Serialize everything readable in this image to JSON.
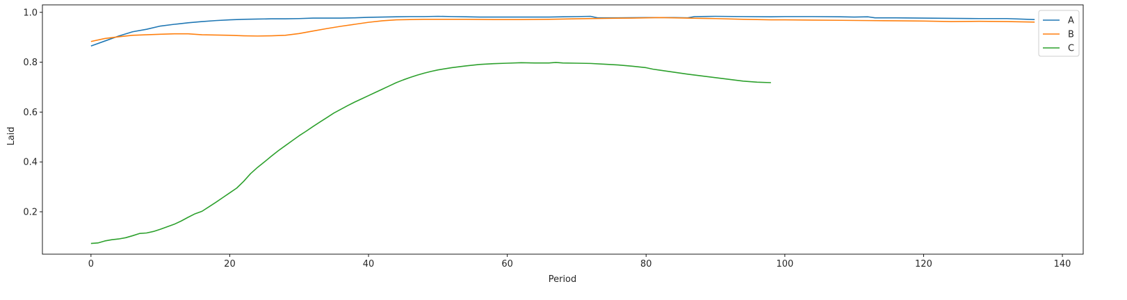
{
  "chart_data": {
    "type": "line",
    "title": "",
    "xlabel": "Period",
    "ylabel": "Laid",
    "xlim": [
      -7,
      143
    ],
    "ylim": [
      0.03,
      1.03
    ],
    "xticks": [
      0,
      20,
      40,
      60,
      80,
      100,
      120,
      140
    ],
    "yticks": [
      0.2,
      0.4,
      0.6,
      0.8,
      1.0
    ],
    "xtick_labels": [
      "0",
      "20",
      "40",
      "60",
      "80",
      "100",
      "120",
      "140"
    ],
    "ytick_labels": [
      "0.2",
      "0.4",
      "0.6",
      "0.8",
      "1.0"
    ],
    "grid": false,
    "legend_position": "top-right",
    "series": [
      {
        "name": "A",
        "color": "#1f77b4",
        "points": [
          [
            0,
            0.865
          ],
          [
            2,
            0.885
          ],
          [
            4,
            0.905
          ],
          [
            6,
            0.922
          ],
          [
            8,
            0.932
          ],
          [
            10,
            0.945
          ],
          [
            12,
            0.952
          ],
          [
            14,
            0.958
          ],
          [
            16,
            0.963
          ],
          [
            18,
            0.967
          ],
          [
            20,
            0.97
          ],
          [
            22,
            0.972
          ],
          [
            24,
            0.973
          ],
          [
            26,
            0.974
          ],
          [
            28,
            0.974
          ],
          [
            30,
            0.975
          ],
          [
            32,
            0.977
          ],
          [
            34,
            0.977
          ],
          [
            36,
            0.977
          ],
          [
            38,
            0.978
          ],
          [
            40,
            0.98
          ],
          [
            42,
            0.981
          ],
          [
            44,
            0.982
          ],
          [
            46,
            0.983
          ],
          [
            48,
            0.983
          ],
          [
            50,
            0.984
          ],
          [
            52,
            0.983
          ],
          [
            54,
            0.982
          ],
          [
            56,
            0.981
          ],
          [
            58,
            0.981
          ],
          [
            60,
            0.981
          ],
          [
            62,
            0.981
          ],
          [
            64,
            0.981
          ],
          [
            66,
            0.981
          ],
          [
            68,
            0.982
          ],
          [
            70,
            0.983
          ],
          [
            72,
            0.984
          ],
          [
            73,
            0.978
          ],
          [
            76,
            0.978
          ],
          [
            80,
            0.979
          ],
          [
            84,
            0.979
          ],
          [
            86,
            0.978
          ],
          [
            87,
            0.983
          ],
          [
            90,
            0.984
          ],
          [
            94,
            0.983
          ],
          [
            98,
            0.982
          ],
          [
            100,
            0.983
          ],
          [
            104,
            0.983
          ],
          [
            108,
            0.982
          ],
          [
            110,
            0.981
          ],
          [
            112,
            0.982
          ],
          [
            113,
            0.978
          ],
          [
            116,
            0.978
          ],
          [
            120,
            0.977
          ],
          [
            124,
            0.976
          ],
          [
            128,
            0.975
          ],
          [
            132,
            0.975
          ],
          [
            136,
            0.971
          ]
        ]
      },
      {
        "name": "B",
        "color": "#ff7f0e",
        "points": [
          [
            0,
            0.883
          ],
          [
            2,
            0.895
          ],
          [
            4,
            0.902
          ],
          [
            6,
            0.908
          ],
          [
            8,
            0.91
          ],
          [
            10,
            0.912
          ],
          [
            12,
            0.914
          ],
          [
            14,
            0.914
          ],
          [
            16,
            0.91
          ],
          [
            18,
            0.909
          ],
          [
            20,
            0.908
          ],
          [
            22,
            0.906
          ],
          [
            24,
            0.905
          ],
          [
            26,
            0.906
          ],
          [
            28,
            0.908
          ],
          [
            30,
            0.915
          ],
          [
            32,
            0.925
          ],
          [
            34,
            0.935
          ],
          [
            36,
            0.944
          ],
          [
            38,
            0.952
          ],
          [
            40,
            0.96
          ],
          [
            42,
            0.966
          ],
          [
            44,
            0.97
          ],
          [
            46,
            0.971
          ],
          [
            48,
            0.972
          ],
          [
            50,
            0.972
          ],
          [
            54,
            0.972
          ],
          [
            58,
            0.971
          ],
          [
            62,
            0.971
          ],
          [
            66,
            0.972
          ],
          [
            70,
            0.974
          ],
          [
            74,
            0.976
          ],
          [
            78,
            0.977
          ],
          [
            80,
            0.978
          ],
          [
            82,
            0.979
          ],
          [
            84,
            0.978
          ],
          [
            86,
            0.977
          ],
          [
            88,
            0.976
          ],
          [
            90,
            0.975
          ],
          [
            94,
            0.972
          ],
          [
            98,
            0.97
          ],
          [
            100,
            0.97
          ],
          [
            104,
            0.969
          ],
          [
            108,
            0.968
          ],
          [
            112,
            0.967
          ],
          [
            116,
            0.966
          ],
          [
            120,
            0.965
          ],
          [
            124,
            0.963
          ],
          [
            128,
            0.964
          ],
          [
            132,
            0.963
          ],
          [
            136,
            0.961
          ]
        ]
      },
      {
        "name": "C",
        "color": "#2ca02c",
        "points": [
          [
            0,
            0.073
          ],
          [
            1,
            0.075
          ],
          [
            2,
            0.083
          ],
          [
            3,
            0.088
          ],
          [
            4,
            0.091
          ],
          [
            5,
            0.096
          ],
          [
            6,
            0.104
          ],
          [
            7,
            0.113
          ],
          [
            8,
            0.115
          ],
          [
            9,
            0.121
          ],
          [
            10,
            0.13
          ],
          [
            11,
            0.14
          ],
          [
            12,
            0.15
          ],
          [
            13,
            0.163
          ],
          [
            14,
            0.178
          ],
          [
            15,
            0.192
          ],
          [
            16,
            0.202
          ],
          [
            17,
            0.22
          ],
          [
            18,
            0.238
          ],
          [
            19,
            0.257
          ],
          [
            20,
            0.276
          ],
          [
            21,
            0.295
          ],
          [
            22,
            0.322
          ],
          [
            23,
            0.353
          ],
          [
            24,
            0.378
          ],
          [
            25,
            0.4
          ],
          [
            26,
            0.423
          ],
          [
            27,
            0.445
          ],
          [
            28,
            0.465
          ],
          [
            29,
            0.485
          ],
          [
            30,
            0.505
          ],
          [
            31,
            0.523
          ],
          [
            32,
            0.542
          ],
          [
            33,
            0.56
          ],
          [
            34,
            0.578
          ],
          [
            35,
            0.596
          ],
          [
            36,
            0.611
          ],
          [
            37,
            0.626
          ],
          [
            38,
            0.64
          ],
          [
            39,
            0.653
          ],
          [
            40,
            0.666
          ],
          [
            41,
            0.679
          ],
          [
            42,
            0.692
          ],
          [
            43,
            0.705
          ],
          [
            44,
            0.718
          ],
          [
            45,
            0.729
          ],
          [
            46,
            0.739
          ],
          [
            47,
            0.748
          ],
          [
            48,
            0.756
          ],
          [
            49,
            0.763
          ],
          [
            50,
            0.769
          ],
          [
            52,
            0.778
          ],
          [
            54,
            0.785
          ],
          [
            56,
            0.791
          ],
          [
            58,
            0.794
          ],
          [
            60,
            0.796
          ],
          [
            62,
            0.798
          ],
          [
            64,
            0.797
          ],
          [
            66,
            0.797
          ],
          [
            67,
            0.799
          ],
          [
            68,
            0.797
          ],
          [
            70,
            0.796
          ],
          [
            72,
            0.795
          ],
          [
            74,
            0.792
          ],
          [
            76,
            0.789
          ],
          [
            78,
            0.784
          ],
          [
            80,
            0.778
          ],
          [
            81,
            0.772
          ],
          [
            82,
            0.768
          ],
          [
            84,
            0.76
          ],
          [
            86,
            0.752
          ],
          [
            88,
            0.745
          ],
          [
            90,
            0.738
          ],
          [
            92,
            0.731
          ],
          [
            94,
            0.724
          ],
          [
            96,
            0.72
          ],
          [
            98,
            0.718
          ]
        ]
      }
    ]
  }
}
